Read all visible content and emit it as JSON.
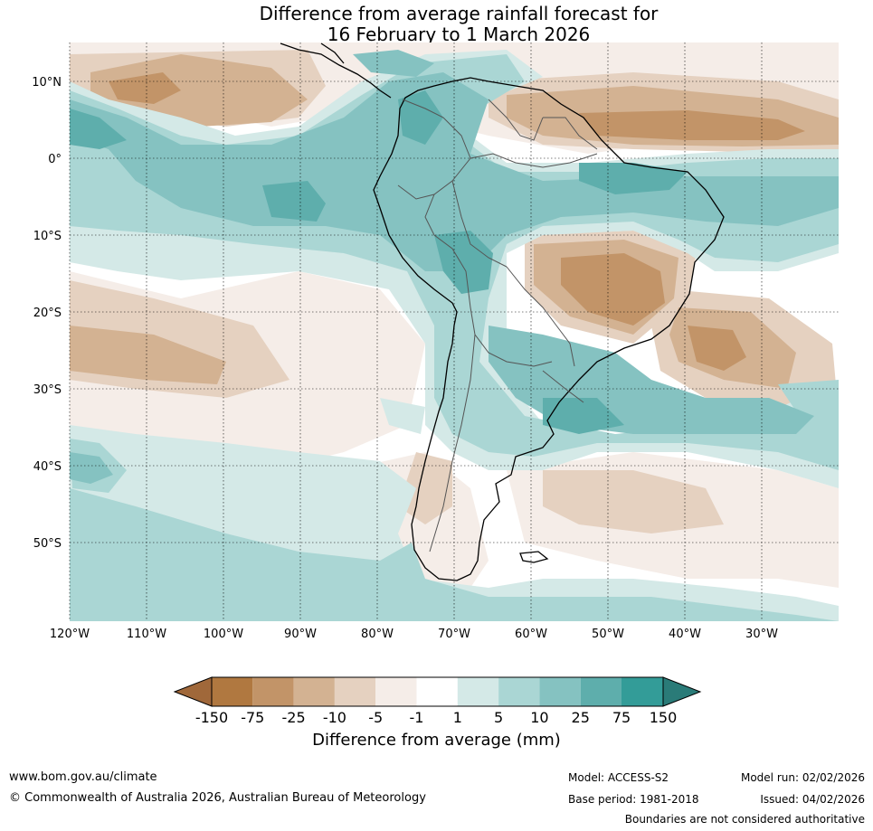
{
  "title": {
    "line1": "Difference from average rainfall forecast for",
    "line2": "16 February to 1 March 2026"
  },
  "map": {
    "lat_labels": [
      "10°N",
      "0°",
      "10°S",
      "20°S",
      "30°S",
      "40°S",
      "50°S"
    ],
    "lon_labels": [
      "120°W",
      "110°W",
      "100°W",
      "90°W",
      "80°W",
      "70°W",
      "60°W",
      "50°W",
      "40°W",
      "30°W"
    ]
  },
  "colorbar": {
    "ticks": [
      "-150",
      "-75",
      "-25",
      "-10",
      "-5",
      "-1",
      "1",
      "5",
      "10",
      "25",
      "75",
      "150"
    ],
    "colors": [
      "#a0683a",
      "#b07840",
      "#c29468",
      "#d3b292",
      "#e5d1c0",
      "#f5ede8",
      "#ffffff",
      "#d4e9e7",
      "#aad6d4",
      "#85c2c1",
      "#5eaeac",
      "#339c98",
      "#2a7b78"
    ],
    "title": "Difference from average (mm)"
  },
  "footer": {
    "website": "www.bom.gov.au/climate",
    "copyright": "© Commonwealth of Australia 2026, Australian Bureau of Meteorology",
    "model": "Model: ACCESS-S2",
    "base_period": "Base period: 1981-2018",
    "model_run": "Model run: 02/02/2026",
    "issued": "Issued: 04/02/2026",
    "disclaimer": "Boundaries are not considered authoritative"
  }
}
